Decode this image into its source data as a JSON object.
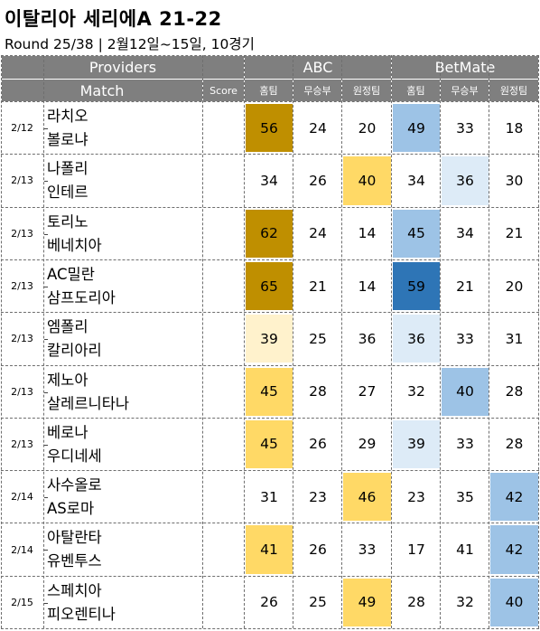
{
  "title": "이탈리아 세리에A 21-22",
  "subtitle": "Round 25/38 | 2월12일~15일, 10경기",
  "header": {
    "providers_label": "Providers",
    "match_label": "Match",
    "score_label": "Score",
    "provider_1": "ABC",
    "provider_2": "BetMate",
    "col_home": "홈팀",
    "col_draw": "무승부",
    "col_away": "원정팀"
  },
  "colors": {
    "header_bg": "#7f7f7f",
    "dark_gold": "#bf8f00",
    "yellow": "#ffd966",
    "pale_yellow": "#fff2cc",
    "dark_blue": "#2e75b6",
    "light_blue": "#9dc3e6",
    "pale_blue": "#ddebf7"
  },
  "matches": [
    {
      "date": "2/12",
      "home": "라치오",
      "away": "볼로냐",
      "score": "",
      "abc": [
        "56",
        "24",
        "20"
      ],
      "betmate": [
        "49",
        "33",
        "18"
      ],
      "abc_fill": [
        "#bf8f00",
        null,
        null
      ],
      "bm_fill": [
        "#9dc3e6",
        null,
        null
      ]
    },
    {
      "date": "2/13",
      "home": "나폴리",
      "away": "인테르",
      "score": "",
      "abc": [
        "34",
        "26",
        "40"
      ],
      "betmate": [
        "34",
        "36",
        "30"
      ],
      "abc_fill": [
        null,
        null,
        "#ffd966"
      ],
      "bm_fill": [
        null,
        "#ddebf7",
        null
      ]
    },
    {
      "date": "2/13",
      "home": "토리노",
      "away": "베네치아",
      "score": "",
      "abc": [
        "62",
        "24",
        "14"
      ],
      "betmate": [
        "45",
        "34",
        "21"
      ],
      "abc_fill": [
        "#bf8f00",
        null,
        null
      ],
      "bm_fill": [
        "#9dc3e6",
        null,
        null
      ]
    },
    {
      "date": "2/13",
      "home": "AC밀란",
      "away": "삼프도리아",
      "score": "",
      "abc": [
        "65",
        "21",
        "14"
      ],
      "betmate": [
        "59",
        "21",
        "20"
      ],
      "abc_fill": [
        "#bf8f00",
        null,
        null
      ],
      "bm_fill": [
        "#2e75b6",
        null,
        null
      ]
    },
    {
      "date": "2/13",
      "home": "엠폴리",
      "away": "칼리아리",
      "score": "",
      "abc": [
        "39",
        "25",
        "36"
      ],
      "betmate": [
        "36",
        "33",
        "31"
      ],
      "abc_fill": [
        "#fff2cc",
        null,
        null
      ],
      "bm_fill": [
        "#ddebf7",
        null,
        null
      ]
    },
    {
      "date": "2/13",
      "home": "제노아",
      "away": "살레르니타나",
      "score": "",
      "abc": [
        "45",
        "28",
        "27"
      ],
      "betmate": [
        "32",
        "40",
        "28"
      ],
      "abc_fill": [
        "#ffd966",
        null,
        null
      ],
      "bm_fill": [
        null,
        "#9dc3e6",
        null
      ]
    },
    {
      "date": "2/13",
      "home": "베로나",
      "away": "우디네세",
      "score": "",
      "abc": [
        "45",
        "26",
        "29"
      ],
      "betmate": [
        "39",
        "33",
        "28"
      ],
      "abc_fill": [
        "#ffd966",
        null,
        null
      ],
      "bm_fill": [
        "#ddebf7",
        null,
        null
      ]
    },
    {
      "date": "2/14",
      "home": "사수올로",
      "away": "AS로마",
      "score": "",
      "abc": [
        "31",
        "23",
        "46"
      ],
      "betmate": [
        "23",
        "35",
        "42"
      ],
      "abc_fill": [
        null,
        null,
        "#ffd966"
      ],
      "bm_fill": [
        null,
        null,
        "#9dc3e6"
      ]
    },
    {
      "date": "2/14",
      "home": "아탈란타",
      "away": "유벤투스",
      "score": "",
      "abc": [
        "41",
        "26",
        "33"
      ],
      "betmate": [
        "17",
        "41",
        "42"
      ],
      "abc_fill": [
        "#ffd966",
        null,
        null
      ],
      "bm_fill": [
        null,
        null,
        "#9dc3e6"
      ]
    },
    {
      "date": "2/15",
      "home": "스페치아",
      "away": "피오렌티나",
      "score": "",
      "abc": [
        "26",
        "25",
        "49"
      ],
      "betmate": [
        "28",
        "32",
        "40"
      ],
      "abc_fill": [
        null,
        null,
        "#ffd966"
      ],
      "bm_fill": [
        null,
        null,
        "#9dc3e6"
      ]
    }
  ]
}
